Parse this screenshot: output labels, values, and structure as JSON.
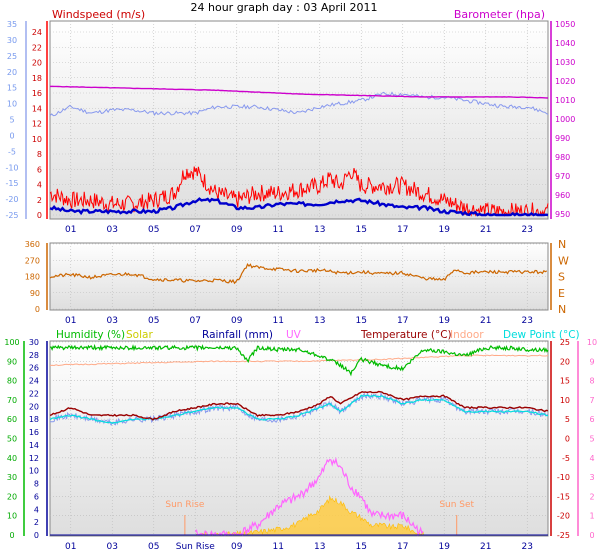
{
  "title": "24 hour graph day : 03 April 2011",
  "colors": {
    "windspeed": "#ff0000",
    "windavg": "#0000cc",
    "temp_axis": "#7799ee",
    "barometer": "#cc00cc",
    "baro_line": "#cc00cc",
    "temp_line": "#8899ee",
    "direction": "#cc6600",
    "humidity": "#00bb00",
    "solar": "#cccc00",
    "rainfall": "#000099",
    "uv": "#ff66ff",
    "temperature": "#990000",
    "indoor": "#ffaa88",
    "dewpoint": "#00dddd",
    "sunmarker": "#ff9966"
  },
  "chart_data": [
    {
      "type": "line",
      "title": "24 hour graph day : 03 April 2011",
      "left_label": "Windspeed (m/s)",
      "right_label": "Barometer (hpa)",
      "left_ticks": [
        "24",
        "22",
        "20",
        "18",
        "16",
        "14",
        "12",
        "10",
        "8",
        "6",
        "4",
        "2",
        "0"
      ],
      "temp_ticks": [
        "35",
        "30",
        "25",
        "20",
        "15",
        "10",
        "5",
        "0",
        "-5",
        "-10",
        "-15",
        "-20",
        "-25"
      ],
      "right_ticks": [
        "1050",
        "1040",
        "1030",
        "1020",
        "1010",
        "1000",
        "990",
        "980",
        "970",
        "960",
        "950"
      ],
      "x_ticks": [
        "01",
        "03",
        "05",
        "07",
        "09",
        "11",
        "13",
        "15",
        "17",
        "19",
        "21",
        "23"
      ],
      "ylim_wind": [
        0,
        25
      ],
      "ylim_baro": [
        948,
        1051
      ],
      "series": [
        {
          "name": "Windspeed (m/s)",
          "x": [
            0,
            1,
            2,
            3,
            4,
            5,
            6,
            6.5,
            7,
            8,
            9,
            10,
            11,
            12,
            13,
            13.5,
            14,
            14.5,
            15,
            16,
            17,
            18,
            19,
            20,
            21,
            22,
            23,
            24
          ],
          "values": [
            3,
            2,
            2,
            1.5,
            1.5,
            2,
            3,
            6,
            6,
            3,
            2,
            3,
            3,
            3.5,
            4,
            5,
            4,
            6,
            4,
            4,
            4,
            3,
            2,
            1,
            0.5,
            0.5,
            0.5,
            0.5
          ]
        },
        {
          "name": "Average windspeed",
          "x": [
            0,
            1,
            2,
            3,
            4,
            5,
            6,
            7,
            8,
            9,
            10,
            11,
            12,
            13,
            14,
            15,
            16,
            17,
            18,
            19,
            20,
            21,
            22,
            23,
            24
          ],
          "values": [
            1,
            0.5,
            0.5,
            0.5,
            0.5,
            0.5,
            1,
            2,
            2,
            1,
            1,
            1.5,
            1.5,
            1.5,
            2,
            2,
            1.5,
            1,
            1,
            0.5,
            0.3,
            0,
            0,
            0,
            0
          ]
        },
        {
          "name": "Barometer (hpa)",
          "x": [
            0,
            2,
            4,
            6,
            8,
            10,
            12,
            14,
            16,
            18,
            20,
            22,
            24
          ],
          "values": [
            1017,
            1016.5,
            1016,
            1015.5,
            1015,
            1014,
            1013,
            1012.5,
            1012,
            1011.5,
            1011.5,
            1011.5,
            1011
          ]
        },
        {
          "name": "Temperature",
          "x": [
            0,
            1,
            2,
            3,
            4,
            5,
            6,
            7,
            8,
            9,
            10,
            11,
            12,
            13,
            14,
            15,
            16,
            17,
            18,
            19,
            20,
            21,
            22,
            23,
            24
          ],
          "values": [
            6,
            9,
            7,
            8,
            8,
            7,
            7,
            7,
            9,
            9,
            9,
            8,
            7,
            9,
            10,
            11,
            13,
            13,
            12,
            12,
            11,
            10,
            9,
            9,
            7
          ]
        }
      ]
    },
    {
      "type": "line",
      "title": "",
      "left_ticks": [
        "360",
        "270",
        "180",
        "90",
        "0"
      ],
      "right_labels": [
        "N",
        "W",
        "S",
        "E",
        "N"
      ],
      "x_ticks": [
        "01",
        "03",
        "05",
        "07",
        "09",
        "11",
        "13",
        "15",
        "17",
        "19",
        "21",
        "23"
      ],
      "ylim": [
        0,
        360
      ],
      "series": [
        {
          "name": "Wind direction",
          "x": [
            0,
            1,
            2,
            3,
            4,
            5,
            6,
            7,
            8,
            9,
            9.5,
            10,
            11,
            12,
            13,
            14,
            15,
            16,
            17,
            18,
            19,
            19.5,
            20,
            21,
            22,
            23,
            24
          ],
          "values": [
            180,
            190,
            175,
            190,
            195,
            165,
            160,
            155,
            160,
            150,
            245,
            230,
            220,
            210,
            215,
            200,
            205,
            195,
            200,
            170,
            160,
            220,
            200,
            205,
            205,
            205,
            205
          ]
        }
      ]
    },
    {
      "type": "line",
      "title": "",
      "legend": [
        "Humidity (%)",
        "Solar",
        "Rainfall (mm)",
        "UV",
        "Temperature (°C)",
        "Indoor",
        "Dew Point (°C)"
      ],
      "left_ticks": [
        "100",
        "90",
        "80",
        "70",
        "60",
        "50",
        "40",
        "30",
        "20",
        "10",
        "0"
      ],
      "rain_ticks": [
        "30",
        "28",
        "26",
        "24",
        "22",
        "20",
        "18",
        "16",
        "14",
        "12",
        "10",
        "8",
        "6",
        "4",
        "2",
        "0"
      ],
      "temp_ticks": [
        "25",
        "20",
        "15",
        "10",
        "5",
        "0",
        "-5",
        "-10",
        "-15",
        "-20",
        "-25"
      ],
      "uv_ticks": [
        "10",
        "9",
        "8",
        "7",
        "6",
        "5",
        "4",
        "3",
        "2",
        "1",
        "0"
      ],
      "x_ticks": [
        "01",
        "03",
        "05",
        "Sun Rise",
        "09",
        "11",
        "13",
        "15",
        "17",
        "19",
        "21",
        "23"
      ],
      "annotations": [
        "Sun Rise",
        "Sun Set"
      ],
      "ylim_humidity": [
        0,
        100
      ],
      "ylim_temp": [
        -25,
        25
      ],
      "series": [
        {
          "name": "Humidity (%)",
          "x": [
            0,
            2,
            4,
            6,
            8,
            9,
            9.5,
            10,
            11,
            12,
            13,
            14,
            14.5,
            15,
            16,
            17,
            18,
            19,
            20,
            21,
            22,
            23,
            24
          ],
          "values": [
            97,
            97,
            97,
            97,
            97,
            97,
            90,
            97,
            96,
            96,
            93,
            88,
            84,
            91,
            88,
            86,
            96,
            95,
            93,
            97,
            97,
            96,
            96
          ]
        },
        {
          "name": "Indoor",
          "x": [
            0,
            4,
            8,
            12,
            16,
            18,
            20,
            24
          ],
          "values": [
            88,
            89,
            90,
            90,
            91,
            92,
            93,
            93
          ]
        },
        {
          "name": "Temperature (°C)",
          "x": [
            0,
            1,
            2,
            3,
            4,
            5,
            6,
            7,
            8,
            9,
            10,
            11,
            12,
            13,
            13.5,
            14,
            15,
            16,
            17,
            18,
            19,
            20,
            21,
            22,
            23,
            24
          ],
          "values": [
            6,
            8,
            6,
            6,
            6,
            5,
            7,
            8,
            9,
            9,
            6,
            6,
            7,
            9,
            11,
            9,
            12,
            12,
            10,
            11,
            11,
            8,
            8,
            8,
            8,
            7
          ]
        },
        {
          "name": "Dew Point (°C)",
          "x": [
            0,
            1,
            2,
            3,
            4,
            5,
            6,
            7,
            8,
            9,
            10,
            11,
            12,
            13,
            13.5,
            14,
            15,
            16,
            17,
            18,
            19,
            20,
            21,
            22,
            23,
            24
          ],
          "values": [
            5,
            6,
            5,
            4,
            5,
            5,
            6,
            7,
            8,
            8,
            5,
            5,
            6,
            8,
            9,
            7,
            11,
            11,
            9,
            10,
            10,
            7,
            7,
            7,
            7,
            6
          ]
        },
        {
          "name": "Solar",
          "x": [
            7,
            8,
            9,
            10,
            11,
            12,
            12.5,
            13,
            13.5,
            14,
            14.5,
            15,
            15.5,
            16,
            16.5,
            17,
            17.5,
            18
          ],
          "values": [
            0,
            0,
            0.5,
            1.5,
            3,
            6,
            10,
            13,
            19,
            17,
            12,
            9,
            5,
            5,
            4,
            5,
            2,
            0
          ]
        },
        {
          "name": "UV",
          "x": [
            7,
            8,
            9,
            10,
            11,
            12,
            13,
            13.5,
            14,
            14.5,
            15,
            15.5,
            16,
            16.5,
            17,
            17.5,
            18
          ],
          "values": [
            0,
            0,
            0,
            0.5,
            1.5,
            2,
            3,
            4,
            3.5,
            2.5,
            2,
            1,
            1,
            1,
            1,
            0.5,
            0
          ]
        },
        {
          "name": "Rainfall (mm)",
          "x": [
            0,
            24
          ],
          "values": [
            0,
            0
          ]
        }
      ]
    }
  ]
}
